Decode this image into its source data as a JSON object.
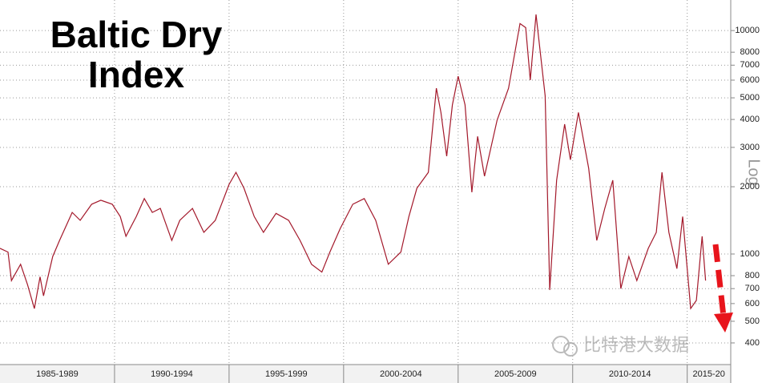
{
  "chart_data": {
    "type": "line",
    "title": "Baltic Dry Index",
    "y_label": "Log",
    "watermark": "比特港大数据",
    "log_scale": true,
    "grid": true,
    "color": "#a3182a",
    "x": [
      1985.0,
      1985.35,
      1985.5,
      1985.9,
      1986.2,
      1986.5,
      1986.75,
      1986.9,
      1987.3,
      1987.6,
      1988.15,
      1988.5,
      1989.0,
      1989.4,
      1989.9,
      1990.25,
      1990.5,
      1990.95,
      1991.3,
      1991.65,
      1992.0,
      1992.5,
      1992.85,
      1993.4,
      1993.9,
      1994.4,
      1994.8,
      1995.0,
      1995.3,
      1995.65,
      1996.1,
      1996.5,
      1997.05,
      1997.6,
      1998.1,
      1998.6,
      1999.05,
      1999.4,
      1999.85,
      2000.4,
      2000.9,
      2001.4,
      2001.95,
      2002.5,
      2002.85,
      2003.2,
      2003.7,
      2004.05,
      2004.25,
      2004.5,
      2004.75,
      2005.0,
      2005.3,
      2005.6,
      2005.85,
      2006.15,
      2006.7,
      2007.2,
      2007.7,
      2007.95,
      2008.15,
      2008.4,
      2008.8,
      2009.0,
      2009.3,
      2009.65,
      2009.9,
      2010.25,
      2010.7,
      2011.05,
      2011.4,
      2011.75,
      2012.1,
      2012.45,
      2012.8,
      2013.3,
      2013.65,
      2013.9,
      2014.2,
      2014.55,
      2014.8,
      2015.15,
      2015.4,
      2015.65,
      2015.8
    ],
    "values": [
      1060,
      1020,
      760,
      900,
      730,
      570,
      790,
      650,
      975,
      1150,
      1535,
      1415,
      1670,
      1740,
      1670,
      1470,
      1200,
      1470,
      1770,
      1535,
      1600,
      1150,
      1415,
      1600,
      1250,
      1415,
      1810,
      2050,
      2320,
      1970,
      1470,
      1250,
      1520,
      1415,
      1150,
      900,
      830,
      1020,
      1300,
      1670,
      1770,
      1415,
      900,
      1020,
      1470,
      1970,
      2320,
      5520,
      4300,
      2740,
      4650,
      6250,
      4650,
      1890,
      3360,
      2230,
      3970,
      5520,
      10750,
      10300,
      6000,
      11800,
      5100,
      690,
      2140,
      3810,
      2640,
      4300,
      2420,
      1150,
      1600,
      2140,
      700,
      975,
      760,
      1060,
      1250,
      2320,
      1250,
      860,
      1470,
      570,
      620,
      1200,
      760
    ],
    "xlim": [
      1985,
      2016.9
    ],
    "xticks": [
      1985,
      1990,
      1995,
      2000,
      2005,
      2010,
      2015
    ],
    "period_labels": [
      "1985-1989",
      "1990-1994",
      "1995-1999",
      "2000-2004",
      "2005-2009",
      "2010-2014",
      "2015-20"
    ],
    "ylim": [
      320,
      13700
    ],
    "yticks": [
      400,
      500,
      600,
      700,
      800,
      1000,
      2000,
      3000,
      4000,
      5000,
      6000,
      7000,
      8000,
      10000
    ]
  }
}
